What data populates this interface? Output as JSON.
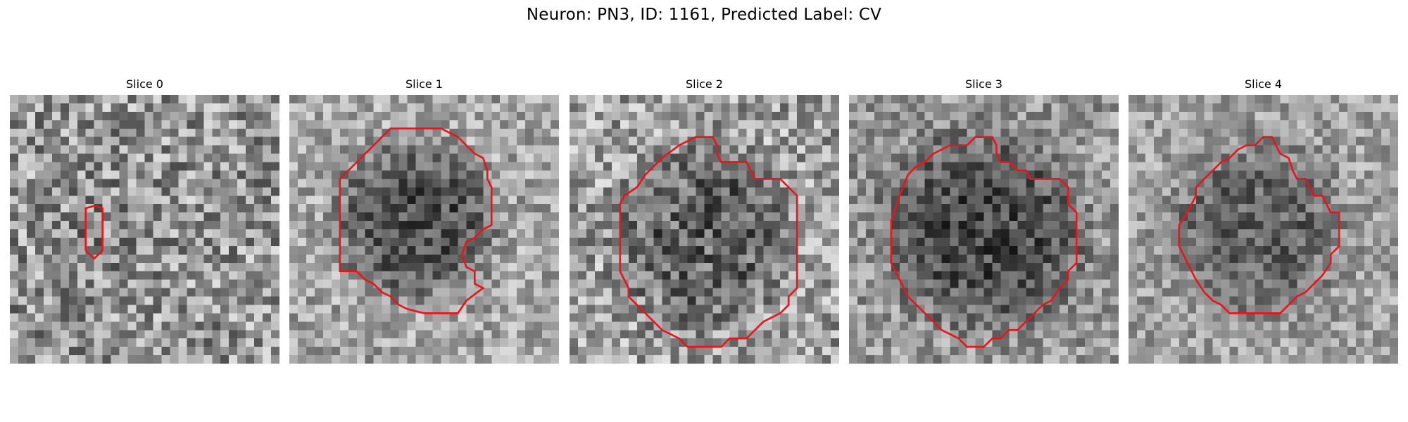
{
  "figure": {
    "title": "Neuron: PN3, ID: 1161, Predicted Label: CV",
    "grid_size": 32,
    "contour_color": "#e8151b",
    "colormap": "grayscale"
  },
  "panels": [
    {
      "title": "Slice 0",
      "contour": [
        [
          9,
          13.5
        ],
        [
          10,
          13.2
        ],
        [
          11,
          13.5
        ],
        [
          11,
          18.5
        ],
        [
          10,
          19.5
        ],
        [
          9,
          18.5
        ]
      ]
    },
    {
      "title": "Slice 1",
      "contour": [
        [
          6,
          10
        ],
        [
          11,
          5
        ],
        [
          12,
          4
        ],
        [
          18,
          4
        ],
        [
          20,
          5
        ],
        [
          22,
          7
        ],
        [
          23,
          7.5
        ],
        [
          23.5,
          9
        ],
        [
          23.5,
          10
        ],
        [
          24,
          11
        ],
        [
          24,
          15.5
        ],
        [
          23,
          16
        ],
        [
          22,
          17
        ],
        [
          21,
          17.5
        ],
        [
          20.5,
          19
        ],
        [
          21,
          20.5
        ],
        [
          22,
          21
        ],
        [
          22,
          22.5
        ],
        [
          23,
          23
        ],
        [
          21,
          24.5
        ],
        [
          20,
          26
        ],
        [
          16,
          26
        ],
        [
          14,
          25.5
        ],
        [
          13,
          25
        ],
        [
          12,
          24
        ],
        [
          11,
          23.5
        ],
        [
          10,
          22.5
        ],
        [
          9,
          22
        ],
        [
          8,
          21
        ],
        [
          6,
          21
        ],
        [
          6,
          20
        ]
      ]
    },
    {
      "title": "Slice 2",
      "contour": [
        [
          8,
          11
        ],
        [
          9,
          9.5
        ],
        [
          10,
          8.5
        ],
        [
          11,
          7.5
        ],
        [
          13,
          6
        ],
        [
          14,
          5.5
        ],
        [
          15,
          5
        ],
        [
          17,
          5
        ],
        [
          17.5,
          6
        ],
        [
          17.5,
          7
        ],
        [
          18,
          8
        ],
        [
          21,
          8
        ],
        [
          21.5,
          9
        ],
        [
          22,
          10
        ],
        [
          25,
          10
        ],
        [
          26,
          11
        ],
        [
          27,
          12
        ],
        [
          27,
          23
        ],
        [
          26,
          24
        ],
        [
          26,
          25
        ],
        [
          25,
          26
        ],
        [
          24,
          26.5
        ],
        [
          23,
          27
        ],
        [
          22,
          28
        ],
        [
          21,
          29
        ],
        [
          19,
          29
        ],
        [
          18,
          30
        ],
        [
          14,
          30
        ],
        [
          13,
          29
        ],
        [
          12,
          28.5
        ],
        [
          11,
          28
        ],
        [
          10,
          27
        ],
        [
          9,
          26
        ],
        [
          8,
          25
        ],
        [
          7,
          24
        ],
        [
          7,
          23
        ],
        [
          6.5,
          22
        ],
        [
          6,
          21
        ],
        [
          6,
          13
        ],
        [
          6.5,
          12
        ]
      ]
    },
    {
      "title": "Slice 3",
      "contour": [
        [
          6,
          12
        ],
        [
          7,
          9.5
        ],
        [
          8,
          8.5
        ],
        [
          9,
          8
        ],
        [
          10,
          7
        ],
        [
          11,
          6.5
        ],
        [
          12,
          6
        ],
        [
          14,
          6
        ],
        [
          15,
          5
        ],
        [
          17,
          5
        ],
        [
          17.5,
          6
        ],
        [
          17.5,
          7
        ],
        [
          18,
          8
        ],
        [
          19,
          8
        ],
        [
          20,
          9
        ],
        [
          21,
          9
        ],
        [
          21.5,
          10
        ],
        [
          22,
          10
        ],
        [
          23,
          10
        ],
        [
          25,
          10
        ],
        [
          26,
          11
        ],
        [
          26,
          13
        ],
        [
          27,
          14
        ],
        [
          27,
          20
        ],
        [
          26,
          21
        ],
        [
          26,
          22
        ],
        [
          25,
          23
        ],
        [
          24,
          24.5
        ],
        [
          23,
          25
        ],
        [
          22,
          26
        ],
        [
          21,
          27
        ],
        [
          20,
          28
        ],
        [
          19,
          28
        ],
        [
          18,
          29
        ],
        [
          17,
          29
        ],
        [
          16,
          30
        ],
        [
          14,
          30
        ],
        [
          13,
          29
        ],
        [
          12,
          28.5
        ],
        [
          11,
          28
        ],
        [
          10,
          27
        ],
        [
          9,
          26
        ],
        [
          8,
          25
        ],
        [
          7,
          24
        ],
        [
          6,
          22
        ],
        [
          5,
          20
        ],
        [
          5,
          15
        ]
      ]
    },
    {
      "title": "Slice 4",
      "contour": [
        [
          7,
          14
        ],
        [
          8,
          12
        ],
        [
          8,
          11
        ],
        [
          9,
          10
        ],
        [
          10,
          9
        ],
        [
          11,
          8
        ],
        [
          12,
          7.5
        ],
        [
          13,
          6.5
        ],
        [
          14,
          6
        ],
        [
          15,
          6
        ],
        [
          16,
          5
        ],
        [
          17,
          5
        ],
        [
          17.5,
          6
        ],
        [
          18,
          7
        ],
        [
          19,
          7.5
        ],
        [
          19.5,
          9
        ],
        [
          20,
          10
        ],
        [
          21,
          10
        ],
        [
          21.5,
          11
        ],
        [
          22,
          12
        ],
        [
          23,
          12
        ],
        [
          23.5,
          13
        ],
        [
          24,
          14
        ],
        [
          25,
          14
        ],
        [
          25,
          18
        ],
        [
          24,
          19
        ],
        [
          24,
          20
        ],
        [
          23,
          21.5
        ],
        [
          22,
          22.5
        ],
        [
          21,
          23.5
        ],
        [
          20,
          24
        ],
        [
          19,
          25
        ],
        [
          18,
          26
        ],
        [
          12,
          26
        ],
        [
          11,
          25
        ],
        [
          10,
          24.5
        ],
        [
          9,
          23.5
        ],
        [
          8,
          22
        ],
        [
          7,
          20
        ],
        [
          6,
          18
        ],
        [
          6,
          15.5
        ]
      ]
    }
  ]
}
